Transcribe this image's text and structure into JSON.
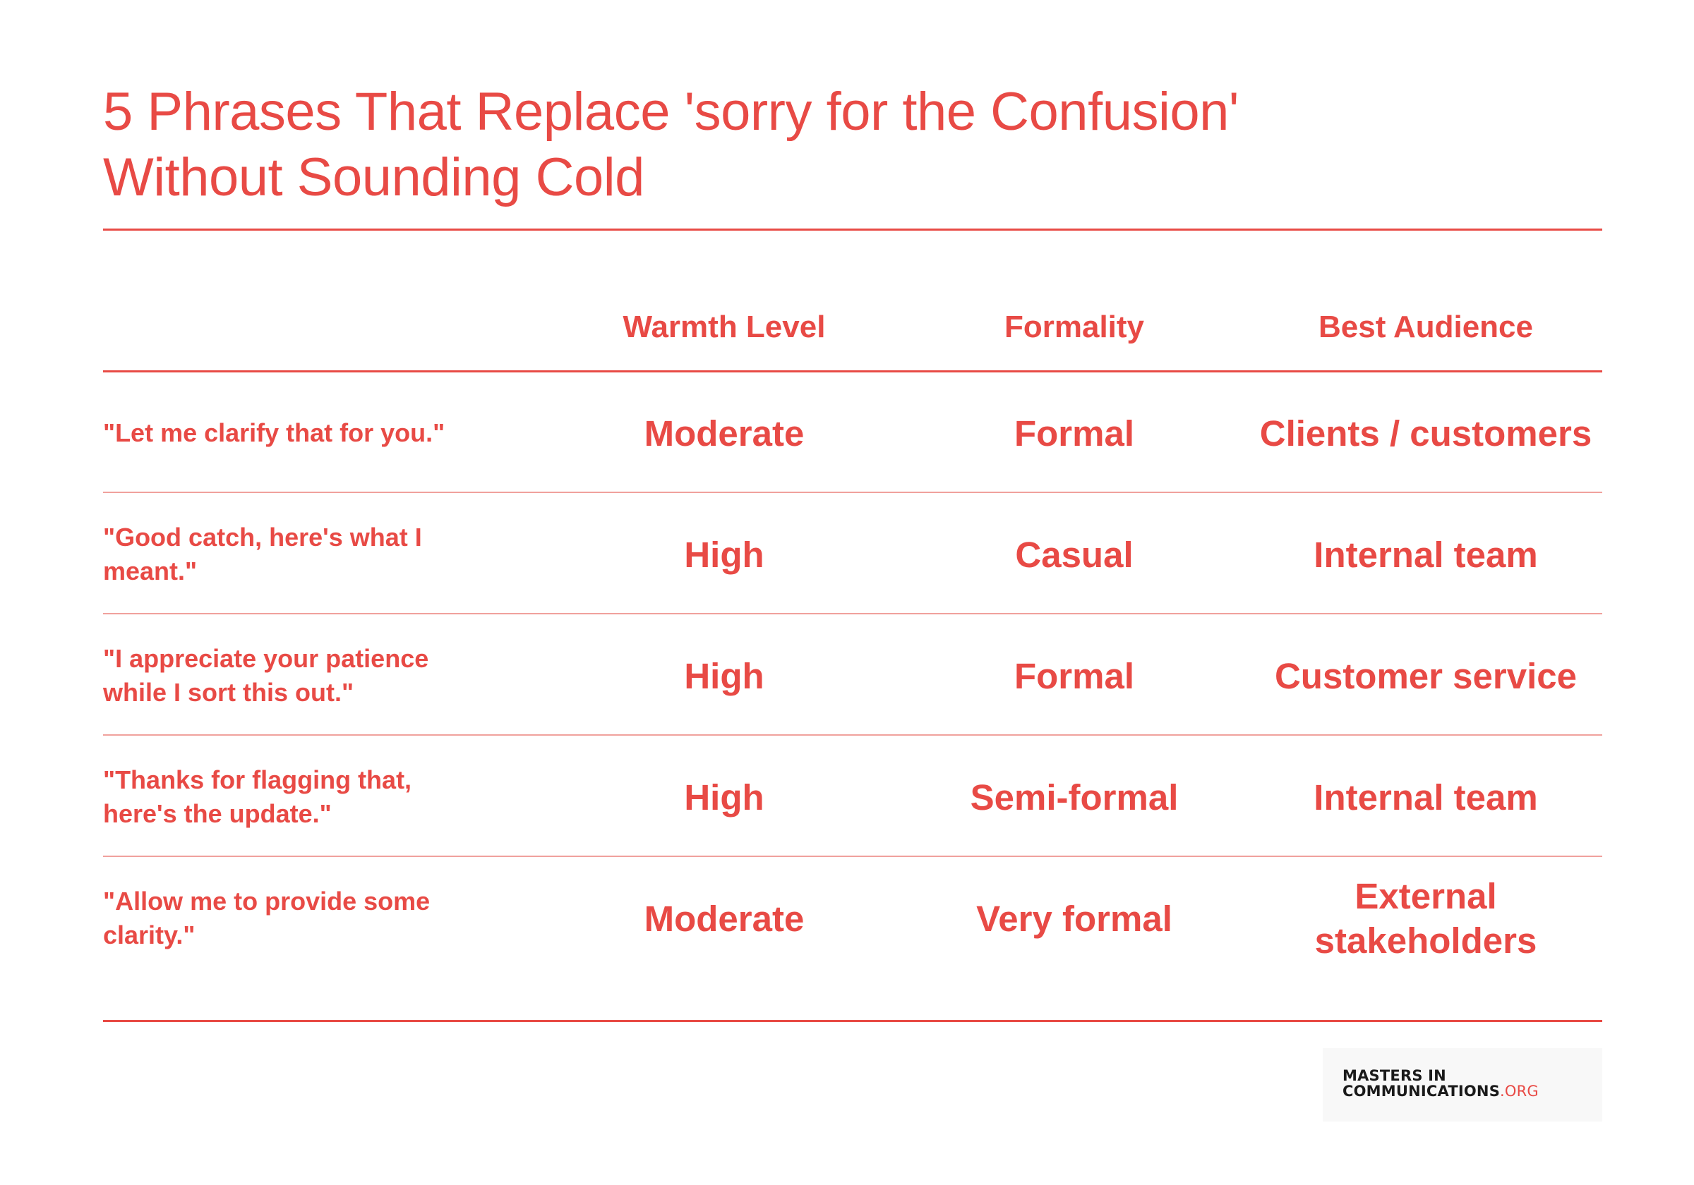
{
  "title": {
    "line1": "5 Phrases That Replace 'sorry for the Confusion'",
    "line2": "Without Sounding Cold"
  },
  "table": {
    "headers": [
      "",
      "Warmth Level",
      "Formality",
      "Best Audience"
    ],
    "rows": [
      {
        "phrase": "\"Let me clarify that for you.\"",
        "warmth": "Moderate",
        "formality": "Formal",
        "audience": "Clients / customers"
      },
      {
        "phrase": "\"Good catch, here's what I meant.\"",
        "warmth": "High",
        "formality": "Casual",
        "audience": "Internal team"
      },
      {
        "phrase": "\"I appreciate your patience while I sort this out.\"",
        "warmth": "High",
        "formality": "Formal",
        "audience": "Customer service"
      },
      {
        "phrase": "\"Thanks for flagging that, here's the update.\"",
        "warmth": "High",
        "formality": "Semi-formal",
        "audience": "Internal team"
      },
      {
        "phrase": "\"Allow me to provide some clarity.\"",
        "warmth": "Moderate",
        "formality": "Very formal",
        "audience": "External stakeholders"
      }
    ]
  },
  "logo": {
    "line1": "MASTERS IN",
    "line2_main": "COMMUNICATIONS",
    "line2_suffix": ".ORG"
  },
  "colors": {
    "accent": "#e84a45",
    "row_divider": "#f0a19d",
    "logo_text": "#1a1a1a"
  }
}
